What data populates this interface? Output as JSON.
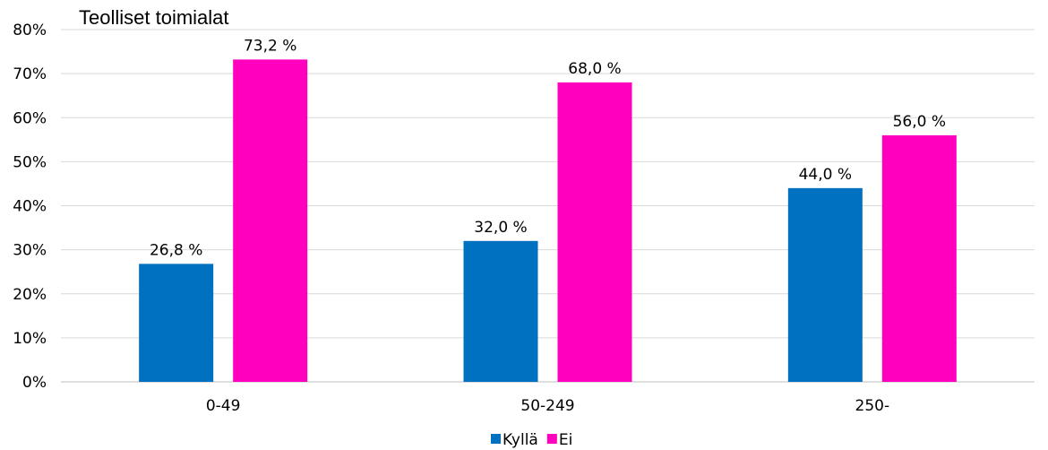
{
  "chart_data": {
    "type": "bar",
    "title": "Teolliset toimialat",
    "categories": [
      "0-49",
      "50-249",
      "250-"
    ],
    "series": [
      {
        "name": "Kyllä",
        "color": "#0070C0",
        "values": [
          26.8,
          32.0,
          44.0
        ],
        "labels": [
          "26,8 %",
          "32,0 %",
          "44,0 %"
        ]
      },
      {
        "name": "Ei",
        "color": "#FF00BF",
        "values": [
          73.2,
          68.0,
          56.0
        ],
        "labels": [
          "73,2 %",
          "68,0 %",
          "56,0 %"
        ]
      }
    ],
    "ylim": [
      0,
      80
    ],
    "yticks": [
      0,
      10,
      20,
      30,
      40,
      50,
      60,
      70,
      80
    ],
    "ytick_labels": [
      "0%",
      "10%",
      "20%",
      "30%",
      "40%",
      "50%",
      "60%",
      "70%",
      "80%"
    ],
    "xlabel": "",
    "ylabel": "",
    "grid": true,
    "legend": "bottom-center"
  }
}
